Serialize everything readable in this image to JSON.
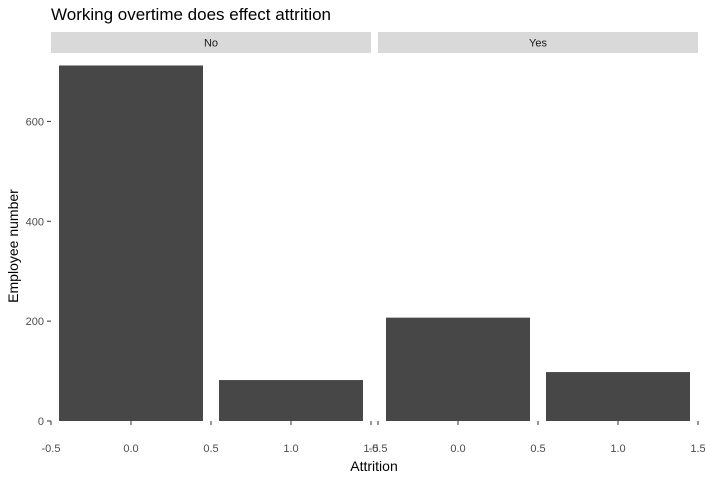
{
  "chart_data": {
    "type": "bar",
    "title": "Working overtime does effect attrition",
    "xlabel": "Attrition",
    "ylabel": "Employee number",
    "facets": [
      {
        "label": "No",
        "bars": [
          {
            "x": 0,
            "value": 712
          },
          {
            "x": 1,
            "value": 82
          }
        ]
      },
      {
        "label": "Yes",
        "bars": [
          {
            "x": 0,
            "value": 207
          },
          {
            "x": 1,
            "value": 98
          }
        ]
      }
    ],
    "xlim": [
      -0.5,
      1.5
    ],
    "x_ticks": [
      "-0.5",
      "0.0",
      "0.5",
      "1.0",
      "1.5"
    ],
    "ylim": [
      0,
      712
    ],
    "y_ticks": [
      "0",
      "200",
      "400",
      "600"
    ],
    "bar_width": 0.9,
    "bar_color": "#474747",
    "strip_color": "#d9d9d9",
    "grid": false
  }
}
